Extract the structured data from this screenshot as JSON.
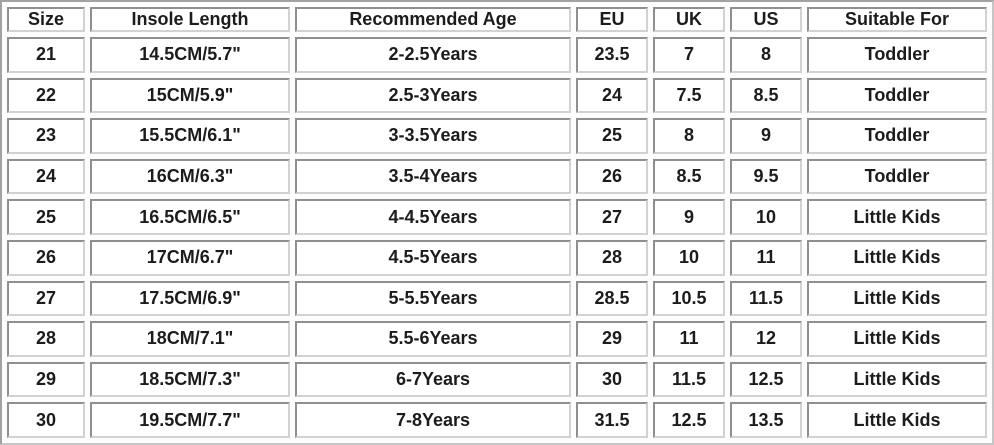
{
  "chart_data": {
    "type": "table",
    "columns": [
      "Size",
      "Insole Length",
      "Recommended Age",
      "EU",
      "UK",
      "US",
      "Suitable For"
    ],
    "rows": [
      [
        "21",
        "14.5CM/5.7\"",
        "2-2.5Years",
        "23.5",
        "7",
        "8",
        "Toddler"
      ],
      [
        "22",
        "15CM/5.9\"",
        "2.5-3Years",
        "24",
        "7.5",
        "8.5",
        "Toddler"
      ],
      [
        "23",
        "15.5CM/6.1\"",
        "3-3.5Years",
        "25",
        "8",
        "9",
        "Toddler"
      ],
      [
        "24",
        "16CM/6.3\"",
        "3.5-4Years",
        "26",
        "8.5",
        "9.5",
        "Toddler"
      ],
      [
        "25",
        "16.5CM/6.5\"",
        "4-4.5Years",
        "27",
        "9",
        "10",
        "Little Kids"
      ],
      [
        "26",
        "17CM/6.7\"",
        "4.5-5Years",
        "28",
        "10",
        "11",
        "Little Kids"
      ],
      [
        "27",
        "17.5CM/6.9\"",
        "5-5.5Years",
        "28.5",
        "10.5",
        "11.5",
        "Little Kids"
      ],
      [
        "28",
        "18CM/7.1\"",
        "5.5-6Years",
        "29",
        "11",
        "12",
        "Little Kids"
      ],
      [
        "29",
        "18.5CM/7.3\"",
        "6-7Years",
        "30",
        "11.5",
        "12.5",
        "Little Kids"
      ],
      [
        "30",
        "19.5CM/7.7\"",
        "7-8Years",
        "31.5",
        "12.5",
        "13.5",
        "Little Kids"
      ]
    ],
    "layout": {
      "grid": "beveled-cell-borders",
      "cell_spacing_px": 5,
      "text_style": "bold",
      "text_align": "center",
      "legend": "none"
    },
    "colors": {
      "text": "#1c1c1c",
      "cell_background": "#ffffff",
      "border_dark": "#8f8f8f",
      "border_light": "#d2d2d2",
      "table_background": "#fdfdfd"
    }
  }
}
